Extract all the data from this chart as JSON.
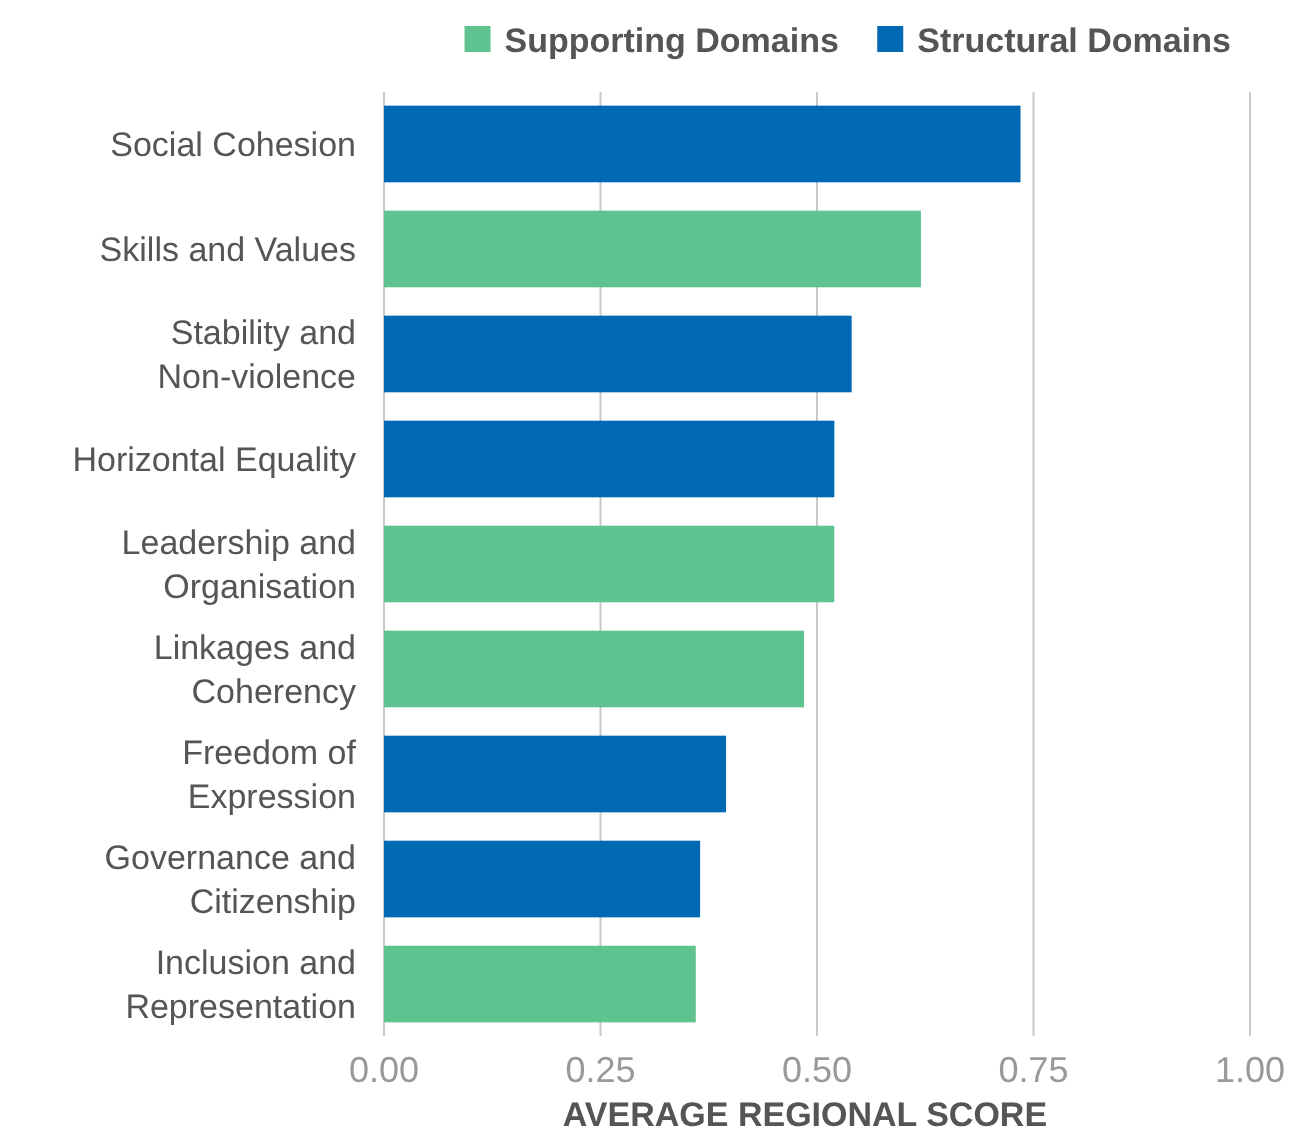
{
  "chart_data": {
    "type": "bar",
    "orientation": "horizontal",
    "stacked": true,
    "xlabel": "AVERAGE REGIONAL SCORE",
    "categories": [
      "Social Cohesion",
      "Skills and Values",
      "Stability and Non-violence",
      "Horizontal Equality",
      "Leadership and Organisation",
      "Linkages and Coherency",
      "Freedom of Expression",
      "Governance and Citizenship",
      "Inclusion and Representation"
    ],
    "series": [
      {
        "name": "Supporting Domains",
        "color": "#5fc38f",
        "values": [
          null,
          0.62,
          null,
          null,
          0.52,
          0.485,
          null,
          null,
          0.36
        ]
      },
      {
        "name": "Structural Domains",
        "color": "#0069b4",
        "values": [
          0.735,
          null,
          0.54,
          0.52,
          null,
          null,
          0.395,
          0.365,
          null
        ]
      }
    ],
    "xlim": [
      0,
      1
    ],
    "xticks": [
      {
        "value": 0,
        "label": "0.00"
      },
      {
        "value": 0.25,
        "label": "0.25"
      },
      {
        "value": 0.5,
        "label": "0.50"
      },
      {
        "value": 0.75,
        "label": "0.75"
      },
      {
        "value": 1,
        "label": "1.00"
      }
    ],
    "grid": "x",
    "legend": "top"
  }
}
